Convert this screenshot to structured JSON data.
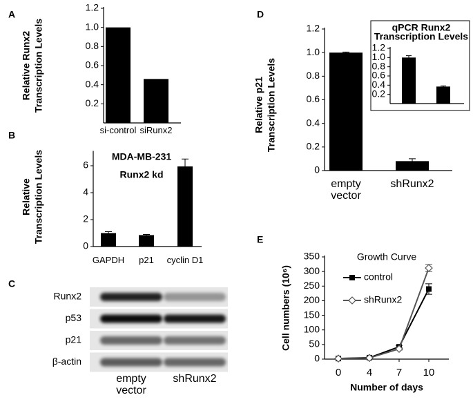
{
  "chart_data": [
    {
      "type": "bar",
      "panel": "A",
      "ylabel": [
        "Relative Runx2",
        "Transcription Levels"
      ],
      "categories": [
        "si-control",
        "siRunx2"
      ],
      "values": [
        1.0,
        0.46
      ],
      "color": "#000000",
      "ylim": [
        0,
        1.2
      ],
      "yticks": [
        0.2,
        0.4,
        0.6,
        0.8,
        {
          "value": 1,
          "label": "1.0"
        },
        1.2
      ]
    },
    {
      "type": "bar",
      "panel": "B",
      "ylabel": [
        "Relative",
        "Transcription Levels"
      ],
      "annotation": [
        "MDA-MB-231",
        "Runx2 kd"
      ],
      "categories": [
        "GAPDH",
        "p21",
        "cyclin D1"
      ],
      "values": [
        1.0,
        0.85,
        5.95
      ],
      "errors": [
        0.1,
        0.05,
        0.55
      ],
      "color": "#000000",
      "ylim": [
        0,
        7
      ],
      "yticks": [
        0,
        2,
        4,
        6
      ]
    },
    {
      "type": "bar",
      "panel": "D",
      "ylabel": [
        "Relative p21",
        "Transcription Levels"
      ],
      "categories": [
        "empty vector",
        "shRunx2"
      ],
      "values": [
        1.0,
        0.08
      ],
      "errors": [
        0.005,
        0.02
      ],
      "color": "#000000",
      "ylim": [
        0,
        1.2
      ],
      "yticks": [
        0,
        0.2,
        0.4,
        0.6,
        0.8,
        {
          "value": 1,
          "label": "1.0"
        },
        1.2
      ]
    },
    {
      "type": "bar",
      "title": [
        "qPCR Runx2",
        "Transcription Levels"
      ],
      "categories": [
        null,
        null
      ],
      "values": [
        1.0,
        0.37
      ],
      "errors": [
        0.04,
        0.015
      ],
      "color": "#000000",
      "ylim": [
        0,
        1.2
      ],
      "yticks": [
        0.2,
        0.4,
        0.6,
        0.8,
        {
          "value": 1,
          "label": "1.0"
        },
        1.2
      ]
    },
    {
      "type": "line",
      "panel": "E",
      "title": "Growth Curve",
      "ylabel": [
        "Cell numbers (10⁶)"
      ],
      "xlabel": "Number of days",
      "categories": [
        "0",
        "4",
        "7",
        "10"
      ],
      "series": [
        {
          "name": "control",
          "color": "#000000",
          "marker": "square",
          "values": [
            2,
            5,
            42,
            240
          ],
          "errors": [
            1,
            2,
            5,
            18
          ]
        },
        {
          "name": "shRunx2",
          "color": "#555555",
          "marker": "diamond",
          "values": [
            2,
            4,
            35,
            312
          ],
          "errors": [
            1,
            1,
            4,
            12
          ]
        }
      ],
      "ylim": [
        0,
        350
      ],
      "yticks": [
        0,
        50,
        100,
        150,
        200,
        250,
        300,
        350
      ]
    }
  ],
  "blot": {
    "panel": "C",
    "rows": [
      "Runx2",
      "p53",
      "p21",
      "β-actin"
    ],
    "lanes": [
      "empty vector",
      "shRunx2"
    ]
  }
}
